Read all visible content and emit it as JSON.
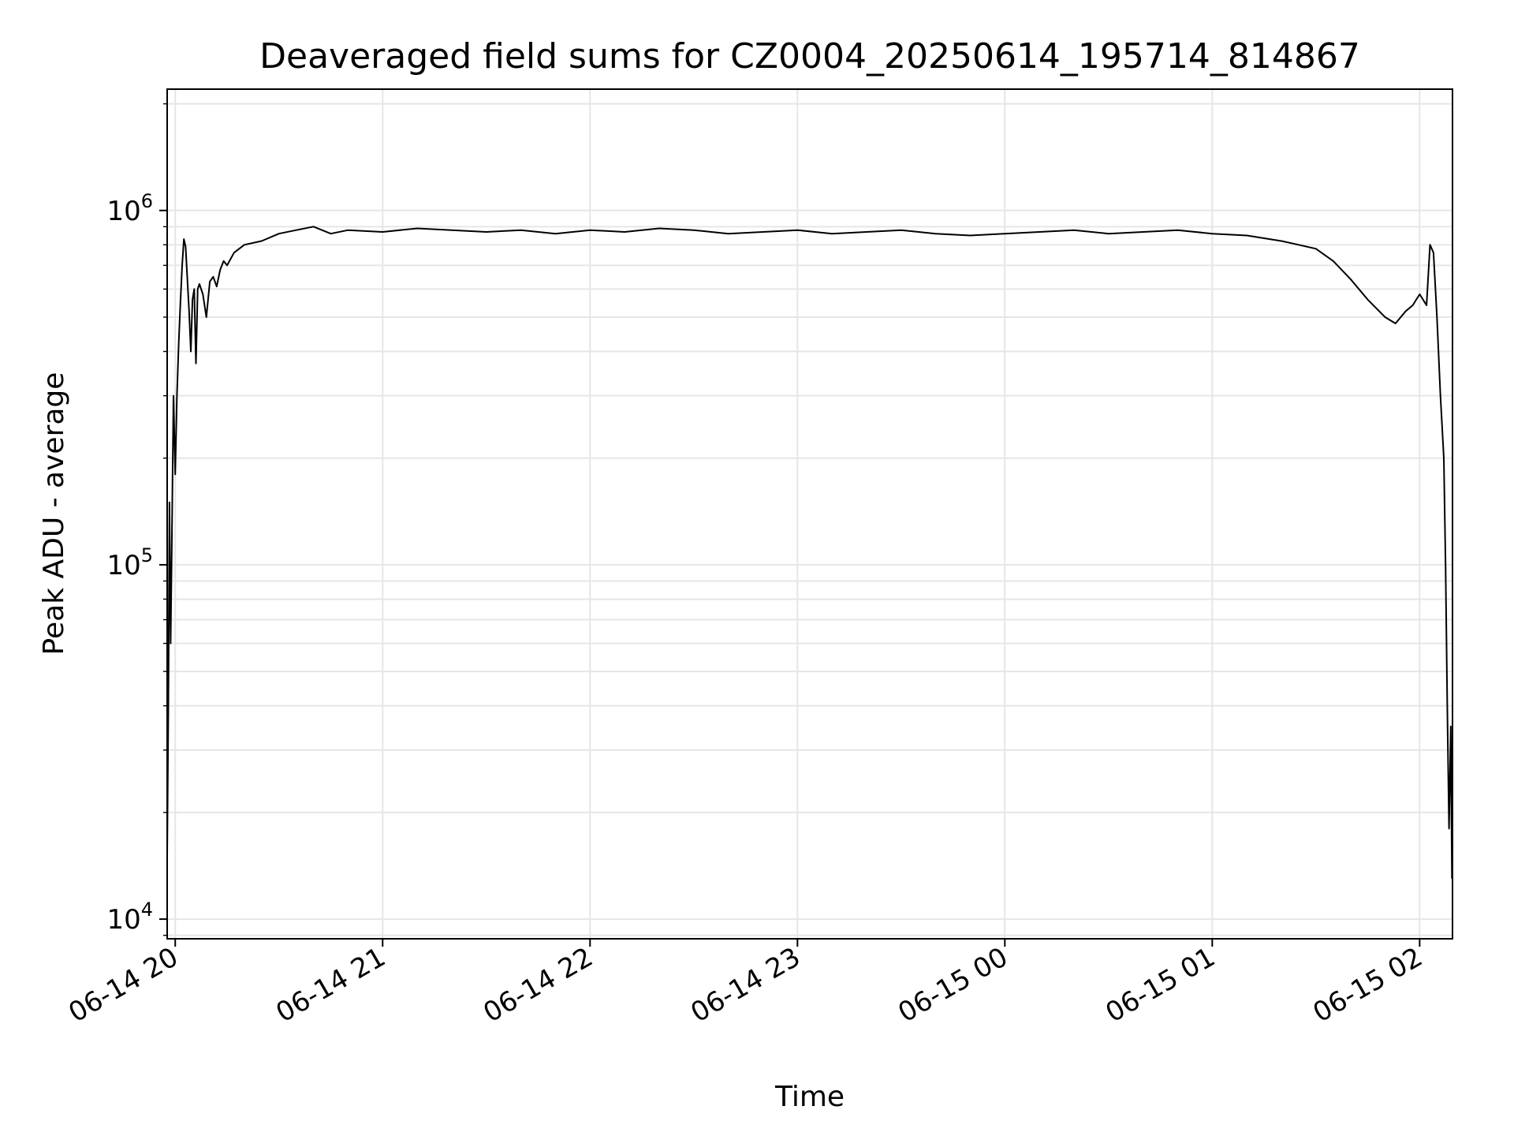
{
  "chart_data": {
    "type": "line",
    "title": "Deaveraged field sums for CZ0004_20250614_195714_814867",
    "xlabel": "Time",
    "ylabel": "Peak ADU - average",
    "y_scale": "log",
    "ylim": [
      8800,
      2200000
    ],
    "xlim": [
      "2025-06-14 19:57:40",
      "2025-06-15 02:09:30"
    ],
    "x_ticks": [
      {
        "value": "2025-06-14 20:00",
        "label": "06-14 20"
      },
      {
        "value": "2025-06-14 21:00",
        "label": "06-14 21"
      },
      {
        "value": "2025-06-14 22:00",
        "label": "06-14 22"
      },
      {
        "value": "2025-06-14 23:00",
        "label": "06-14 23"
      },
      {
        "value": "2025-06-15 00:00",
        "label": "06-15 00"
      },
      {
        "value": "2025-06-15 01:00",
        "label": "06-15 01"
      },
      {
        "value": "2025-06-15 02:00",
        "label": "06-15 02"
      }
    ],
    "y_ticks": [
      {
        "value": 10000,
        "base": "10",
        "exp": "4"
      },
      {
        "value": 100000,
        "base": "10",
        "exp": "5"
      },
      {
        "value": 1000000,
        "base": "10",
        "exp": "6"
      }
    ],
    "grid": true,
    "line_color": "#000000",
    "grid_color": "#e6e6e6",
    "series": [
      {
        "x": [
          "2025-06-14 19:57:40",
          "2025-06-14 19:58:00",
          "2025-06-14 19:58:20",
          "2025-06-14 19:58:40",
          "2025-06-14 19:59:00",
          "2025-06-14 19:59:30",
          "2025-06-14 20:00:00",
          "2025-06-14 20:00:30",
          "2025-06-14 20:01:00",
          "2025-06-14 20:01:30",
          "2025-06-14 20:02:00",
          "2025-06-14 20:02:30",
          "2025-06-14 20:03:00",
          "2025-06-14 20:03:30",
          "2025-06-14 20:04:00",
          "2025-06-14 20:04:30",
          "2025-06-14 20:05:00",
          "2025-06-14 20:05:30",
          "2025-06-14 20:06:00",
          "2025-06-14 20:06:30",
          "2025-06-14 20:07:00",
          "2025-06-14 20:08:00",
          "2025-06-14 20:09:00",
          "2025-06-14 20:10:00",
          "2025-06-14 20:11:00",
          "2025-06-14 20:12:00",
          "2025-06-14 20:13:00",
          "2025-06-14 20:14:00",
          "2025-06-14 20:15:00",
          "2025-06-14 20:17:00",
          "2025-06-14 20:20:00",
          "2025-06-14 20:25:00",
          "2025-06-14 20:30:00",
          "2025-06-14 20:35:00",
          "2025-06-14 20:40:00",
          "2025-06-14 20:45:00",
          "2025-06-14 20:50:00",
          "2025-06-14 21:00:00",
          "2025-06-14 21:10:00",
          "2025-06-14 21:20:00",
          "2025-06-14 21:30:00",
          "2025-06-14 21:40:00",
          "2025-06-14 21:50:00",
          "2025-06-14 22:00:00",
          "2025-06-14 22:10:00",
          "2025-06-14 22:20:00",
          "2025-06-14 22:30:00",
          "2025-06-14 22:40:00",
          "2025-06-14 22:50:00",
          "2025-06-14 23:00:00",
          "2025-06-14 23:10:00",
          "2025-06-14 23:20:00",
          "2025-06-14 23:30:00",
          "2025-06-14 23:40:00",
          "2025-06-14 23:50:00",
          "2025-06-15 00:00:00",
          "2025-06-15 00:10:00",
          "2025-06-15 00:20:00",
          "2025-06-15 00:30:00",
          "2025-06-15 00:40:00",
          "2025-06-15 00:50:00",
          "2025-06-15 01:00:00",
          "2025-06-15 01:10:00",
          "2025-06-15 01:20:00",
          "2025-06-15 01:25:00",
          "2025-06-15 01:30:00",
          "2025-06-15 01:35:00",
          "2025-06-15 01:40:00",
          "2025-06-15 01:45:00",
          "2025-06-15 01:50:00",
          "2025-06-15 01:53:00",
          "2025-06-15 01:56:00",
          "2025-06-15 01:58:00",
          "2025-06-15 01:59:00",
          "2025-06-15 02:00:00",
          "2025-06-15 02:01:00",
          "2025-06-15 02:02:00",
          "2025-06-15 02:03:00",
          "2025-06-15 02:04:00",
          "2025-06-15 02:05:00",
          "2025-06-15 02:06:00",
          "2025-06-15 02:07:00",
          "2025-06-15 02:07:30",
          "2025-06-15 02:08:00",
          "2025-06-15 02:08:30",
          "2025-06-15 02:09:00",
          "2025-06-15 02:09:20"
        ],
        "y": [
          15000,
          40000,
          150000,
          60000,
          110000,
          300000,
          180000,
          300000,
          420000,
          550000,
          700000,
          830000,
          790000,
          640000,
          520000,
          400000,
          560000,
          600000,
          370000,
          600000,
          620000,
          580000,
          500000,
          630000,
          650000,
          610000,
          680000,
          720000,
          700000,
          760000,
          800000,
          820000,
          860000,
          880000,
          900000,
          860000,
          880000,
          870000,
          890000,
          880000,
          870000,
          880000,
          860000,
          880000,
          870000,
          890000,
          880000,
          860000,
          870000,
          880000,
          860000,
          870000,
          880000,
          860000,
          850000,
          860000,
          870000,
          880000,
          860000,
          870000,
          880000,
          860000,
          850000,
          820000,
          800000,
          780000,
          720000,
          640000,
          560000,
          500000,
          480000,
          520000,
          540000,
          560000,
          580000,
          560000,
          540000,
          800000,
          760000,
          500000,
          300000,
          200000,
          100000,
          40000,
          18000,
          35000,
          13000
        ]
      }
    ]
  }
}
